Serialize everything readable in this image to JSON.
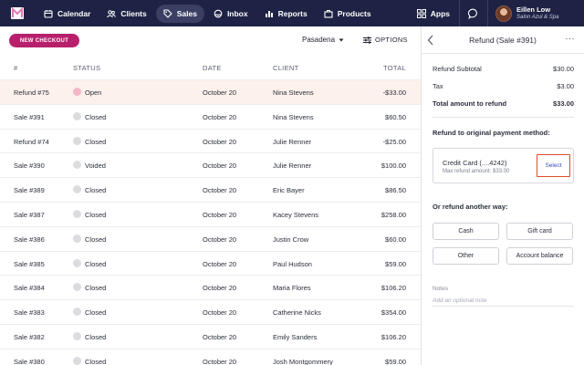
{
  "nav": {
    "items": [
      {
        "label": "Calendar",
        "icon": "calendar-icon"
      },
      {
        "label": "Clients",
        "icon": "clients-icon"
      },
      {
        "label": "Sales",
        "icon": "sales-tag-icon"
      },
      {
        "label": "Inbox",
        "icon": "inbox-icon"
      },
      {
        "label": "Reports",
        "icon": "reports-icon"
      },
      {
        "label": "Products",
        "icon": "products-icon"
      }
    ],
    "apps_label": "Apps",
    "user_name": "Eillen Low",
    "user_org": "Salon Azul & Spa"
  },
  "toolbar": {
    "new_checkout": "NEW CHECKOUT",
    "location": "Pasadena",
    "options": "OPTIONS"
  },
  "table": {
    "headers": {
      "num": "#",
      "status": "STATUS",
      "date": "DATE",
      "client": "CLIENT",
      "total": "TOTAL"
    },
    "rows": [
      {
        "num": "Refund #75",
        "status": "Open",
        "date": "October 20",
        "client": "Nina Stevens",
        "total": "-$33.00"
      },
      {
        "num": "Sale #391",
        "status": "Closed",
        "date": "October 20",
        "client": "Nina Stevens",
        "total": "$60.50"
      },
      {
        "num": "Refund #74",
        "status": "Closed",
        "date": "October 20",
        "client": "Julie Renner",
        "total": "-$25.00"
      },
      {
        "num": "Sale #390",
        "status": "Voided",
        "date": "October 20",
        "client": "Julie Renner",
        "total": "$100.00"
      },
      {
        "num": "Sale #389",
        "status": "Closed",
        "date": "October 20",
        "client": "Eric Bayer",
        "total": "$86.50"
      },
      {
        "num": "Sale #387",
        "status": "Closed",
        "date": "October 20",
        "client": "Kacey Stevens",
        "total": "$258.00"
      },
      {
        "num": "Sale #386",
        "status": "Closed",
        "date": "October 20",
        "client": "Justin Crow",
        "total": "$60.00"
      },
      {
        "num": "Sale #385",
        "status": "Closed",
        "date": "October 20",
        "client": "Paul Hudson",
        "total": "$59.00"
      },
      {
        "num": "Sale #384",
        "status": "Closed",
        "date": "October 20",
        "client": "Maria Flores",
        "total": "$106.20"
      },
      {
        "num": "Sale #383",
        "status": "Closed",
        "date": "October 20",
        "client": "Catherine Nicks",
        "total": "$354.00"
      },
      {
        "num": "Sale #382",
        "status": "Closed",
        "date": "October 20",
        "client": "Emily Sanders",
        "total": "$106.20"
      },
      {
        "num": "Sale #380",
        "status": "Closed",
        "date": "October 20",
        "client": "Josh Montgommery",
        "total": "$59.00"
      }
    ]
  },
  "refund": {
    "title": "Refund (Sale #391)",
    "subtotal_label": "Refund Subtotal",
    "subtotal_value": "$30.00",
    "tax_label": "Tax",
    "tax_value": "$3.00",
    "total_label": "Total amount to refund",
    "total_value": "$33.00",
    "original_method_label": "Refund to original payment method:",
    "card_name": "Credit Card (....4242)",
    "card_max": "Max refund amount: $33.00",
    "select_label": "Select",
    "other_way_label": "Or refund another way:",
    "options": [
      "Cash",
      "Gift card",
      "Other",
      "Account balance"
    ],
    "notes_label": "Notes",
    "notes_placeholder": "Add an optional note"
  },
  "colors": {
    "nav_bg": "#1e2244",
    "accent": "#b8206c",
    "highlight": "#e0482e",
    "open_dot": "#f4b6c6",
    "closed_dot": "#dcdce0"
  }
}
